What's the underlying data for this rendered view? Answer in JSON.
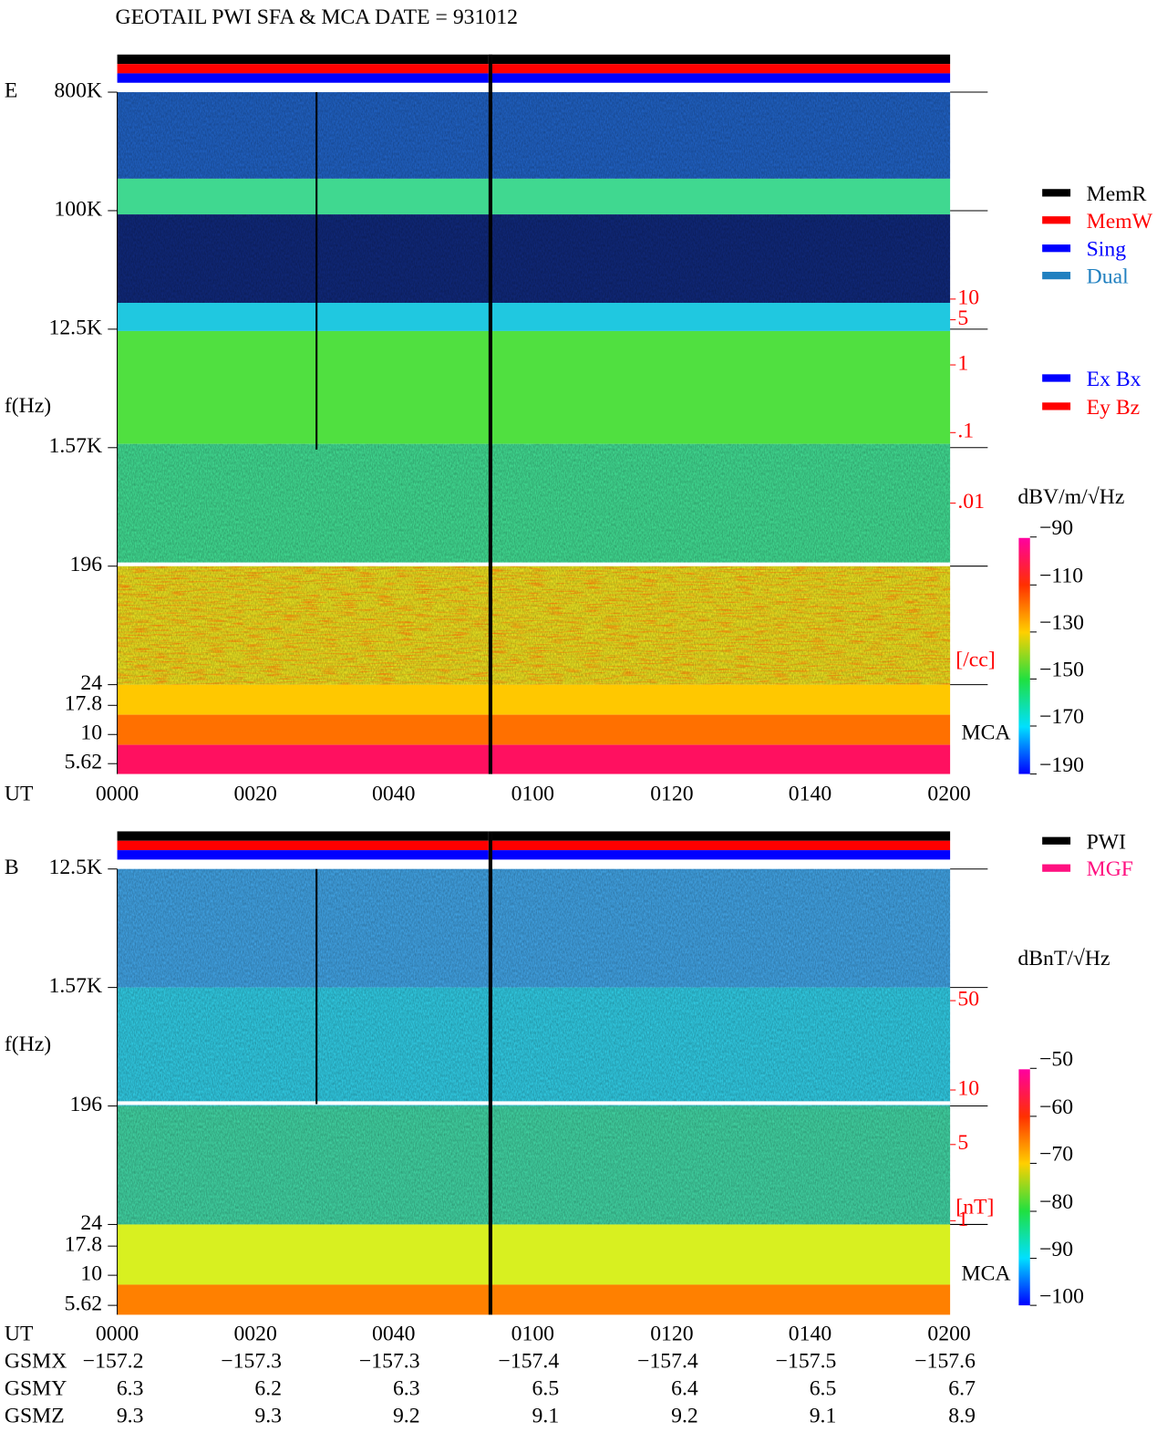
{
  "header": {
    "title": "GEOTAIL  PWI SFA & MCA   DATE = 931012"
  },
  "panels": [
    {
      "label": "E",
      "ylabel": "f(Hz)",
      "yticks": [
        "800K",
        "100K",
        "12.5K",
        "1.57K",
        "196",
        "24",
        "17.8",
        "10",
        "5.62"
      ],
      "right_ticks": [
        "10",
        "5",
        "1",
        ".1",
        ".01"
      ],
      "right_unit": "[/cc]",
      "mca": "MCA",
      "legend": [
        {
          "name": "MemR",
          "color": "#000000"
        },
        {
          "name": "MemW",
          "color": "#ff0000"
        },
        {
          "name": "Sing",
          "color": "#0000ff"
        },
        {
          "name": "Dual",
          "color": "#2080c0"
        },
        {
          "name": "Ex Bx",
          "color": "#0000ff"
        },
        {
          "name": "Ey Bz",
          "color": "#ff0000"
        }
      ],
      "colorbar": {
        "unit": "dBV/m/√Hz",
        "ticks": [
          "−90",
          "−110",
          "−130",
          "−150",
          "−170",
          "−190"
        ]
      }
    },
    {
      "label": "B",
      "ylabel": "f(Hz)",
      "yticks": [
        "12.5K",
        "1.57K",
        "196",
        "24",
        "17.8",
        "10",
        "5.62"
      ],
      "right_ticks": [
        "50",
        "10",
        "5",
        "1"
      ],
      "right_unit": "[nT]",
      "mca": "MCA",
      "legend": [
        {
          "name": "PWI",
          "color": "#000000"
        },
        {
          "name": "MGF",
          "color": "#ff1080"
        }
      ],
      "colorbar": {
        "unit": "dBnT/√Hz",
        "ticks": [
          "−50",
          "−60",
          "−70",
          "−80",
          "−90",
          "−100"
        ]
      }
    }
  ],
  "time_axis": {
    "label": "UT",
    "ticks": [
      "0000",
      "0020",
      "0040",
      "0100",
      "0120",
      "0140",
      "0200"
    ]
  },
  "orbit": [
    {
      "label": "GSMX",
      "values": [
        "−157.2",
        "−157.3",
        "−157.3",
        "−157.4",
        "−157.4",
        "−157.5",
        "−157.6"
      ]
    },
    {
      "label": "GSMY",
      "values": [
        "6.3",
        "6.2",
        "6.3",
        "6.5",
        "6.4",
        "6.5",
        "6.7"
      ]
    },
    {
      "label": "GSMZ",
      "values": [
        "9.3",
        "9.3",
        "9.2",
        "9.1",
        "9.2",
        "9.1",
        "8.9"
      ]
    }
  ]
}
